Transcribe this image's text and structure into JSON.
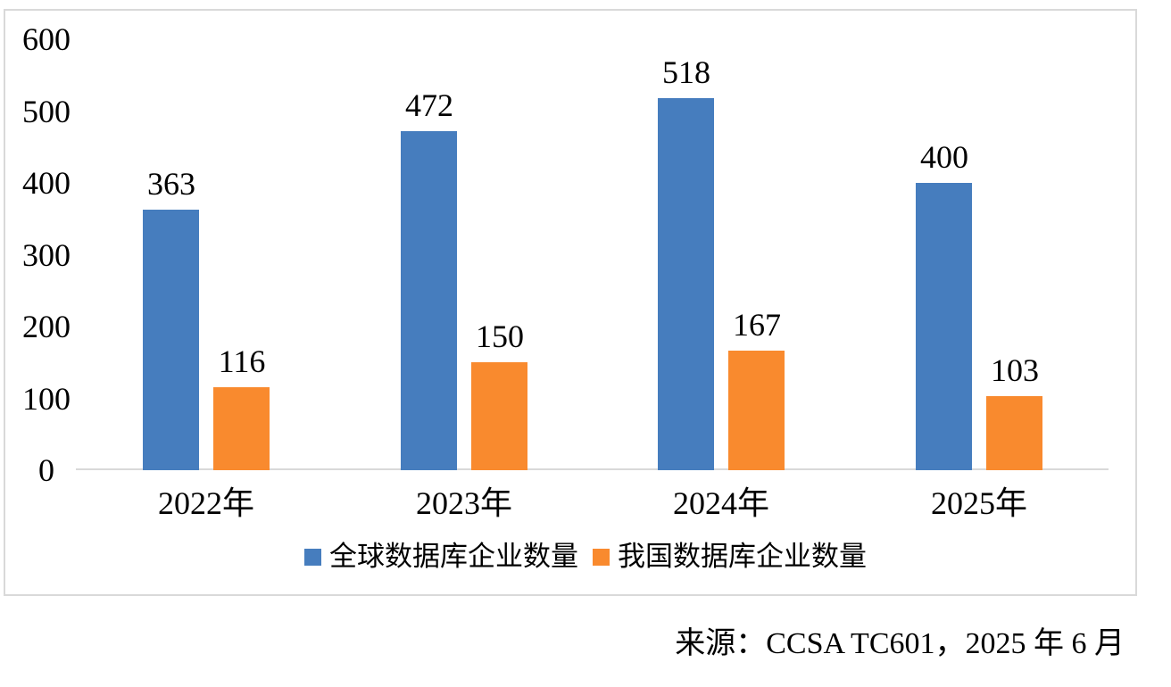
{
  "chart_data": {
    "type": "bar",
    "title": "",
    "xlabel": "",
    "ylabel": "",
    "categories": [
      "2022年",
      "2023年",
      "2024年",
      "2025年"
    ],
    "series": [
      {
        "name": "全球数据库企业数量",
        "color": "#467DBE",
        "values": [
          363,
          472,
          518,
          400
        ]
      },
      {
        "name": "我国数据库企业数量",
        "color": "#F98A2E",
        "values": [
          116,
          150,
          167,
          103
        ]
      }
    ],
    "ylim": [
      0,
      600
    ],
    "yticks": [
      0,
      100,
      200,
      300,
      400,
      500,
      600
    ],
    "grid": false,
    "data_labels": true,
    "legend_position": "bottom"
  },
  "source_note": "来源：CCSA TC601，2025 年 6 月",
  "colors": {
    "series_blue": "#467DBE",
    "series_orange": "#F98A2E",
    "axis_line": "#d9d9d9",
    "frame_border": "#d9d9d9",
    "text": "#000000"
  }
}
